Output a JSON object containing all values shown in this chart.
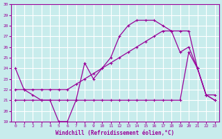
{
  "xlabel": "Windchill (Refroidissement éolien,°C)",
  "bg_color": "#c8ecec",
  "grid_color": "#ffffff",
  "line_color": "#990099",
  "xlim": [
    -0.5,
    23.5
  ],
  "ylim": [
    19,
    30
  ],
  "xticks": [
    0,
    1,
    2,
    3,
    4,
    5,
    6,
    7,
    8,
    9,
    10,
    11,
    12,
    13,
    14,
    15,
    16,
    17,
    18,
    19,
    20,
    21,
    22,
    23
  ],
  "yticks": [
    19,
    20,
    21,
    22,
    23,
    24,
    25,
    26,
    27,
    28,
    29,
    30
  ],
  "curve1_x": [
    0,
    1,
    2,
    3,
    4,
    5,
    6,
    7,
    8,
    9,
    10,
    11,
    12,
    13,
    14,
    15,
    16,
    17,
    18,
    19,
    20,
    21,
    22,
    23
  ],
  "curve1_y": [
    24,
    22,
    21.5,
    21,
    21,
    19,
    19,
    21,
    24.5,
    23,
    24,
    25,
    27,
    28,
    28.5,
    28.5,
    28.5,
    28,
    27.5,
    25.5,
    26,
    24,
    21.5,
    21.5
  ],
  "curve2_x": [
    0,
    1,
    2,
    3,
    4,
    5,
    6,
    7,
    8,
    9,
    10,
    11,
    12,
    13,
    14,
    15,
    16,
    17,
    18,
    19,
    20,
    21,
    22,
    23
  ],
  "curve2_y": [
    22,
    22,
    22,
    22,
    22,
    22,
    22,
    22.5,
    23,
    23.5,
    24,
    24.5,
    25,
    25.5,
    26,
    26.5,
    27,
    27.5,
    27.5,
    27.5,
    27.5,
    24,
    21.5,
    21
  ],
  "curve3_x": [
    0,
    1,
    2,
    3,
    4,
    5,
    6,
    7,
    8,
    9,
    10,
    11,
    12,
    13,
    14,
    15,
    16,
    17,
    18,
    19,
    20,
    21,
    22,
    23
  ],
  "curve3_y": [
    21,
    21,
    21,
    21,
    21,
    21,
    21,
    21,
    21,
    21,
    21,
    21,
    21,
    21,
    21,
    21,
    21,
    21,
    21,
    21,
    25.5,
    24,
    21.5,
    21
  ]
}
